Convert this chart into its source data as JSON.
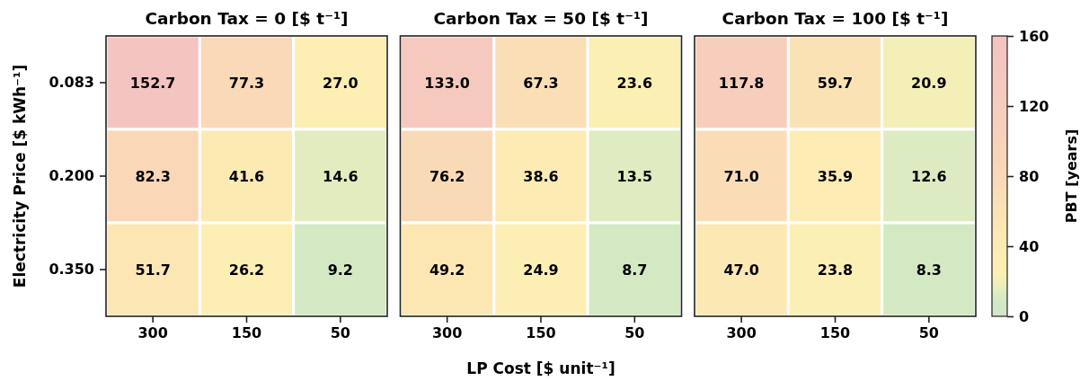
{
  "chart_data": [
    {
      "type": "heatmap",
      "title": "Carbon Tax = 0 [$ t⁻¹]",
      "ylabel": "Electricity Price [$ kWh⁻¹]",
      "categories": [
        "300",
        "150",
        "50"
      ],
      "y_categories": [
        "0.083",
        "0.200",
        "0.350"
      ],
      "cells": [
        [
          152.7,
          77.3,
          27.0
        ],
        [
          82.3,
          41.6,
          14.6
        ],
        [
          51.7,
          26.2,
          9.2
        ]
      ],
      "cell_labels": [
        [
          "152.7",
          "77.3",
          "27.0"
        ],
        [
          "82.3",
          "41.6",
          "14.6"
        ],
        [
          "51.7",
          "26.2",
          "9.2"
        ]
      ],
      "data_labels": true
    },
    {
      "type": "heatmap",
      "title": "Carbon Tax = 50 [$ t⁻¹]",
      "xlabel": "LP Cost [$ unit⁻¹]",
      "categories": [
        "300",
        "150",
        "50"
      ],
      "y_categories": [
        "0.083",
        "0.200",
        "0.350"
      ],
      "cells": [
        [
          133.0,
          67.3,
          23.6
        ],
        [
          76.2,
          38.6,
          13.5
        ],
        [
          49.2,
          24.9,
          8.7
        ]
      ],
      "cell_labels": [
        [
          "133.0",
          "67.3",
          "23.6"
        ],
        [
          "76.2",
          "38.6",
          "13.5"
        ],
        [
          "49.2",
          "24.9",
          "8.7"
        ]
      ],
      "data_labels": true,
      "tick_labels": "x"
    },
    {
      "type": "heatmap",
      "title": "Carbon Tax = 100 [$ t⁻¹]",
      "categories": [
        "300",
        "150",
        "50"
      ],
      "y_categories": [
        "0.083",
        "0.200",
        "0.350"
      ],
      "cells": [
        [
          117.8,
          59.7,
          20.9
        ],
        [
          71.0,
          35.9,
          12.6
        ],
        [
          47.0,
          23.8,
          8.3
        ]
      ],
      "cell_labels": [
        [
          "117.8",
          "59.7",
          "20.9"
        ],
        [
          "71.0",
          "35.9",
          "12.6"
        ],
        [
          "47.0",
          "23.8",
          "8.3"
        ]
      ],
      "data_labels": true,
      "clim": [
        0,
        160
      ],
      "cticks": [
        0,
        40,
        80,
        120,
        160
      ],
      "clabel": "PBT [years]",
      "tick_labels": "x"
    }
  ]
}
